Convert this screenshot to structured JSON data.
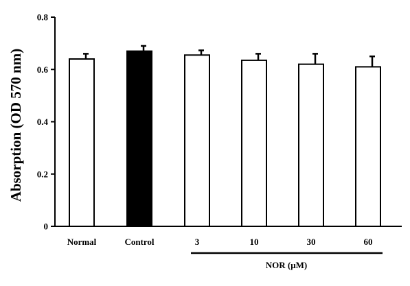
{
  "chart_data": {
    "type": "bar",
    "title": "",
    "xlabel": "",
    "ylabel": "Absorption (OD 570 nm)",
    "ylim": [
      0,
      0.8
    ],
    "yticks": [
      "0",
      "0.2",
      "0.4",
      "0.6",
      "0.8"
    ],
    "ytick_values": [
      0,
      0.2,
      0.4,
      0.6,
      0.8
    ],
    "categories": [
      "Normal",
      "Control",
      "3",
      "10",
      "30",
      "60"
    ],
    "values": [
      0.64,
      0.67,
      0.655,
      0.635,
      0.62,
      0.61
    ],
    "errors": [
      0.02,
      0.02,
      0.018,
      0.025,
      0.04,
      0.04
    ],
    "fills": [
      "#ffffff",
      "#000000",
      "#ffffff",
      "#ffffff",
      "#ffffff",
      "#ffffff"
    ],
    "group_label": "NOR (μM)",
    "group_members": [
      "3",
      "10",
      "30",
      "60"
    ],
    "grid": false
  }
}
